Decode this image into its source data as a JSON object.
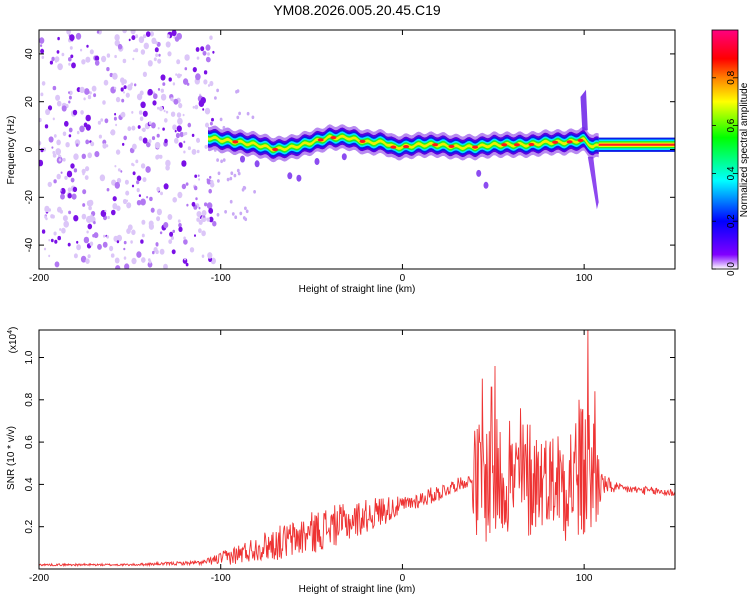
{
  "figure_title": "YM08.2026.005.20.45.C19",
  "chart_data": [
    {
      "type": "heatmap",
      "title": "YM08.2026.005.20.45.C19",
      "xlabel": "Height of straight line (km)",
      "ylabel": "Frequency (Hz)",
      "xlim": [
        -200,
        150
      ],
      "ylim": [
        -50,
        50
      ],
      "x_ticks": [
        -200,
        -100,
        0,
        100
      ],
      "x_tick_labels": [
        "-200",
        "-100",
        "0",
        "100"
      ],
      "y_ticks": [
        -40,
        -20,
        0,
        20,
        40
      ],
      "y_tick_labels": [
        "-40",
        "-20",
        "0",
        "20",
        "40"
      ],
      "colorbar": {
        "label": "Normalized spectral amplitude",
        "range": [
          0,
          1
        ],
        "ticks": [
          0.0,
          0.2,
          0.4,
          0.6,
          0.8
        ],
        "tick_labels": [
          "0.0",
          "0.2",
          "0.4",
          "0.6",
          "0.8"
        ],
        "colors": [
          "#ffffff",
          "#8000ff",
          "#0000ff",
          "#00ffff",
          "#00ff00",
          "#ffff00",
          "#ff8000",
          "#ff0000",
          "#ff0080"
        ]
      },
      "noise_region": {
        "x_range": [
          -200,
          -103
        ],
        "freq_range": [
          -50,
          50
        ],
        "level": "low (purple speckle)"
      },
      "ridge": {
        "x": [
          -107,
          -100,
          -90,
          -80,
          -70,
          -60,
          -50,
          -40,
          -30,
          -20,
          -10,
          -5,
          0,
          10,
          20,
          30,
          40,
          50,
          60,
          70,
          80,
          90,
          100,
          105,
          110,
          150
        ],
        "freq": [
          5,
          4,
          3,
          2,
          0,
          1,
          3,
          5,
          5,
          3,
          3,
          1,
          1,
          2,
          2,
          1,
          1,
          2,
          2,
          2,
          3,
          3,
          4,
          1,
          2,
          2
        ],
        "amplitude_peak": 0.95
      },
      "spike_near_100km": {
        "x": 99,
        "freq_range": [
          -25,
          25
        ]
      }
    },
    {
      "type": "line",
      "xlabel": "Height of straight line (km)",
      "ylabel": "SNR (10 * v/v)",
      "scale_note_base": "(x10",
      "scale_note_exp": "4",
      "scale_note_close": ")",
      "xlim": [
        -200,
        150
      ],
      "ylim": [
        0,
        1.13
      ],
      "x_ticks": [
        -200,
        -100,
        0,
        100
      ],
      "x_tick_labels": [
        "-200",
        "-100",
        "0",
        "100"
      ],
      "y_ticks": [
        0.2,
        0.4,
        0.6,
        0.8,
        1.0
      ],
      "y_tick_labels": [
        "0.2",
        "0.4",
        "0.6",
        "0.8",
        "1.0"
      ],
      "series": [
        {
          "name": "SNR",
          "color": "#ee3333",
          "x": [
            -200,
            -150,
            -110,
            -100,
            -90,
            -80,
            -70,
            -60,
            -50,
            -40,
            -30,
            -20,
            -10,
            0,
            10,
            20,
            30,
            38,
            40,
            50,
            60,
            70,
            80,
            90,
            100,
            105,
            110,
            120,
            150
          ],
          "y": [
            0.02,
            0.02,
            0.03,
            0.05,
            0.07,
            0.1,
            0.12,
            0.14,
            0.17,
            0.2,
            0.22,
            0.25,
            0.28,
            0.3,
            0.33,
            0.36,
            0.4,
            0.42,
            0.41,
            0.42,
            0.42,
            0.43,
            0.43,
            0.43,
            0.44,
            0.44,
            0.4,
            0.38,
            0.36
          ],
          "oscillation_amplitude": [
            0.005,
            0.005,
            0.01,
            0.03,
            0.05,
            0.06,
            0.08,
            0.09,
            0.1,
            0.1,
            0.09,
            0.08,
            0.07,
            0.04,
            0.04,
            0.04,
            0.03,
            0.03,
            0.3,
            0.3,
            0.25,
            0.3,
            0.2,
            0.3,
            0.35,
            0.35,
            0.05,
            0.02,
            0.02
          ],
          "peaks": [
            {
              "x": 44,
              "y": 0.9
            },
            {
              "x": 49,
              "y": 0.86
            },
            {
              "x": 51,
              "y": 0.96
            },
            {
              "x": 59,
              "y": 0.7
            },
            {
              "x": 65,
              "y": 0.76
            },
            {
              "x": 97,
              "y": 0.8
            },
            {
              "x": 102,
              "y": 1.13
            },
            {
              "x": 106,
              "y": 0.84
            }
          ]
        }
      ]
    }
  ]
}
